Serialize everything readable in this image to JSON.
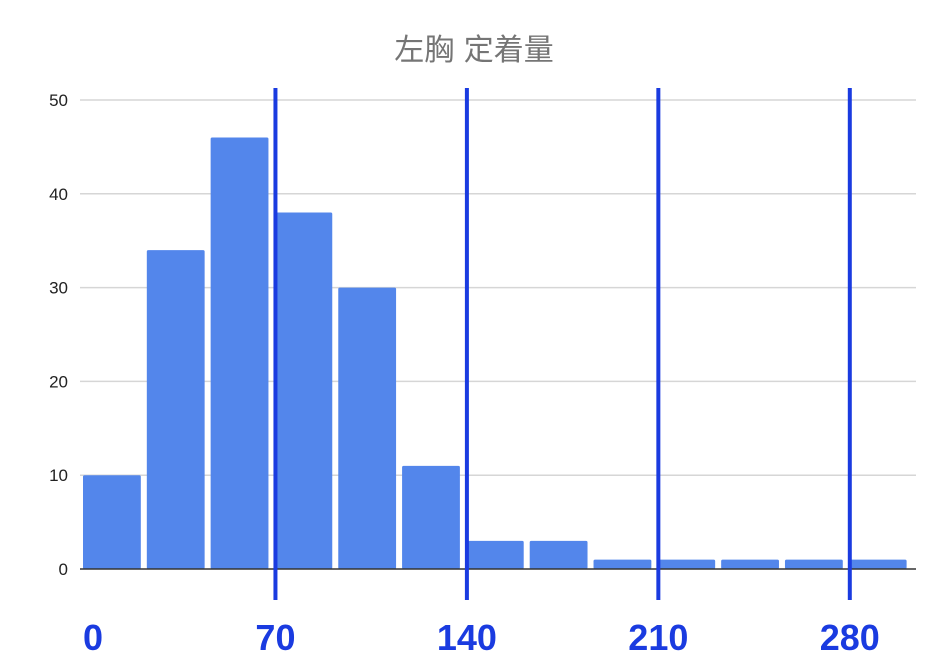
{
  "chart_data": {
    "type": "bar",
    "title": "左胸 定着量",
    "xlabel": "",
    "ylabel": "",
    "ylim": [
      0,
      50
    ],
    "yticks": [
      0,
      10,
      20,
      30,
      40,
      50
    ],
    "grid": true,
    "bin_width": 23.333,
    "bin_start": 0,
    "values": [
      10,
      34,
      46,
      38,
      30,
      11,
      3,
      3,
      1,
      1,
      1,
      1,
      1
    ],
    "xticks": [
      {
        "value": 0,
        "label": "0"
      },
      {
        "value": 70,
        "label": "70"
      },
      {
        "value": 140,
        "label": "140"
      },
      {
        "value": 210,
        "label": "210"
      },
      {
        "value": 280,
        "label": "280"
      }
    ],
    "marker_lines": [
      70,
      140,
      210,
      280
    ],
    "colors": {
      "bar": "#5386eb",
      "marker": "#1a3be0",
      "tick_label": "#1a3be0",
      "title": "#757575"
    }
  }
}
